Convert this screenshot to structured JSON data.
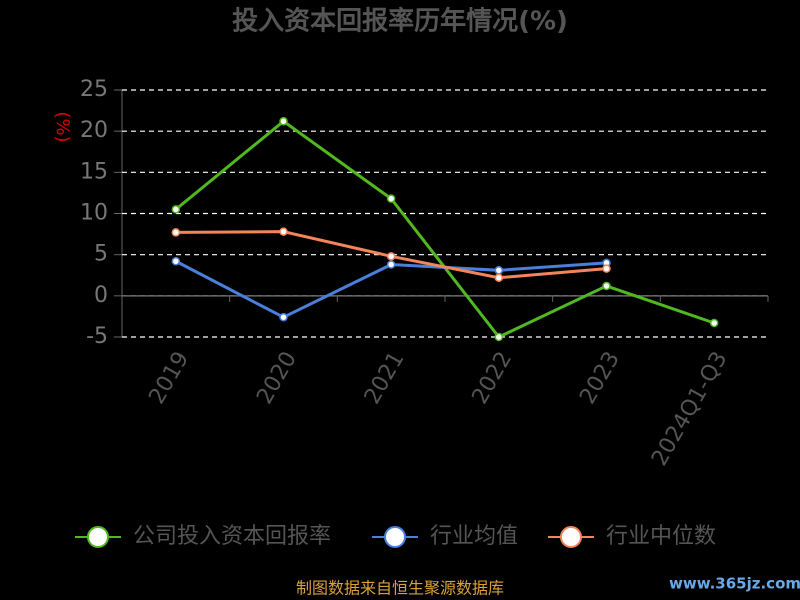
{
  "chart_data": {
    "type": "line",
    "title": "投入资本回报率历年情况(%)",
    "y_label": "(%)",
    "categories": [
      "2019",
      "2020",
      "2021",
      "2022",
      "2023",
      "2024Q1-Q3"
    ],
    "series": [
      {
        "name": "公司投入资本回报率",
        "color": "#52b81f",
        "values": [
          10.5,
          21.2,
          11.8,
          -5.0,
          1.2,
          -3.3
        ]
      },
      {
        "name": "行业均值",
        "color": "#4a7fdc",
        "values": [
          4.2,
          -2.6,
          3.8,
          3.1,
          4.0,
          null
        ]
      },
      {
        "name": "行业中位数",
        "color": "#f4845a",
        "values": [
          7.7,
          7.8,
          4.8,
          2.2,
          3.3,
          null
        ]
      }
    ],
    "ylim": [
      -5,
      25
    ],
    "yticks": [
      -5,
      0,
      5,
      10,
      15,
      20,
      25
    ],
    "grid": true,
    "source": "制图数据来自恒生聚源数据库",
    "watermark": "www.365jz.com"
  }
}
